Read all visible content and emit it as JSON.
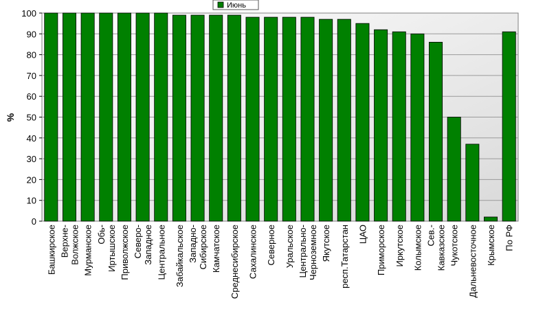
{
  "chart_data": {
    "type": "bar",
    "title": "",
    "xlabel": "",
    "ylabel": "%",
    "ylim": [
      0,
      100
    ],
    "yticks": [
      0,
      10,
      20,
      30,
      40,
      50,
      60,
      70,
      80,
      90,
      100
    ],
    "grid": true,
    "legend": "top-center",
    "series": [
      {
        "name": "Июнь",
        "color": "#008000",
        "values": [
          100,
          100,
          100,
          100,
          100,
          100,
          100,
          99,
          99,
          99,
          99,
          98,
          98,
          98,
          98,
          97,
          97,
          95,
          92,
          91,
          90,
          86,
          50,
          37,
          2,
          91
        ]
      }
    ],
    "categories": [
      [
        "Башкирское"
      ],
      [
        "Верхне-",
        "Волжское"
      ],
      [
        "Мурманское"
      ],
      [
        "Обь-",
        "Иртышское"
      ],
      [
        "Приволжское"
      ],
      [
        "Северо-",
        "Западное"
      ],
      [
        "Центральное"
      ],
      [
        "Забайкальское"
      ],
      [
        "Западно-",
        "Сибирское"
      ],
      [
        "Камчатское"
      ],
      [
        "Среднесибирское"
      ],
      [
        "Сахалинское"
      ],
      [
        "Северное"
      ],
      [
        "Уральское"
      ],
      [
        "Центрально-",
        "Черноземное"
      ],
      [
        "Якутское"
      ],
      [
        "респ.Татарстан"
      ],
      [
        "ЦАО"
      ],
      [
        "Приморское"
      ],
      [
        "Иркутское"
      ],
      [
        "Колымское"
      ],
      [
        "Сев.-",
        "Кавказское"
      ],
      [
        "Чукотское"
      ],
      [
        "Дальневосточное"
      ],
      [
        "Крымское"
      ],
      [
        "По РФ"
      ]
    ]
  }
}
